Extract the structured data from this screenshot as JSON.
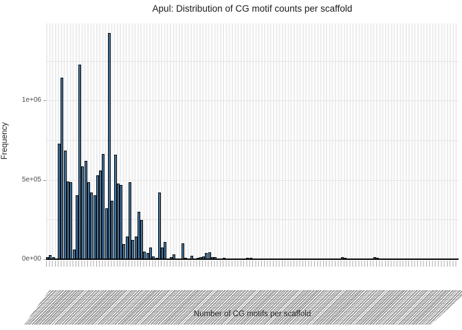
{
  "title": "Apul: Distribution of CG motif counts per scaffold",
  "y_axis": {
    "label": "Frequency",
    "tick_labels": [
      "1e+06",
      "5e+05",
      "0e+00"
    ]
  },
  "x_axis": {
    "label": "Number of CG motifs per scaffold",
    "tick_labels_legible": false,
    "tick_label_style": "rotated ~45deg, densely overlapping into an unreadable gray band"
  },
  "colors": {
    "bar_fill": "#4176A5",
    "bar_outline": "#0d0d0d",
    "gridline": "#e7e7e7",
    "axis_text": "#4d4d4d",
    "title_text": "#1a1a1a"
  },
  "chart_data": {
    "type": "bar",
    "title": "Apul: Distribution of CG motif counts per scaffold",
    "xlabel": "Number of CG motifs per scaffold",
    "ylabel": "Frequency",
    "ylim": [
      0,
      1490000
    ],
    "y_major_gridlines": [
      0,
      500000,
      1000000
    ],
    "y_minor_gridlines": [
      250000,
      750000,
      1250000
    ],
    "y_tick_labels": [
      "0e+00",
      "5e+05",
      "1e+06"
    ],
    "grid": "major and minor horizontal lines plus one light vertical gridline per bar slot, light gray on white",
    "legend": false,
    "n_bars": 140,
    "values": [
      15000,
      28000,
      12000,
      0,
      730000,
      1150000,
      685000,
      490000,
      485000,
      60000,
      405000,
      1230000,
      585000,
      620000,
      485000,
      420000,
      405000,
      530000,
      560000,
      665000,
      320000,
      1430000,
      370000,
      660000,
      478000,
      470000,
      94000,
      145000,
      486000,
      123000,
      145000,
      300000,
      246000,
      50000,
      40000,
      72000,
      18000,
      8000,
      420000,
      74000,
      110000,
      6000,
      14000,
      29000,
      5000,
      4000,
      101000,
      8000,
      4000,
      22000,
      5000,
      10000,
      14000,
      18000,
      40000,
      42000,
      15000,
      14000,
      6000,
      5000,
      8000,
      4000,
      5000,
      4000,
      6000,
      4000,
      4000,
      5000,
      8000,
      8000,
      4000,
      4000,
      5000,
      4000,
      4000,
      5000,
      4000,
      4000,
      4000,
      5000,
      4000,
      4000,
      5000,
      4000,
      4000,
      4000,
      5000,
      4000,
      4000,
      4000,
      5000,
      4000,
      4000,
      4000,
      4000,
      4000,
      4000,
      4000,
      4000,
      4000,
      12000,
      8000,
      4000,
      4000,
      4000,
      4000,
      4000,
      4000,
      4000,
      4000,
      4000,
      12000,
      8000,
      5000,
      4000,
      4000,
      4000,
      4000,
      4000,
      4000,
      4000,
      4000,
      4000,
      4000,
      4000,
      4000,
      4000,
      4000,
      4000,
      4000,
      4000,
      4000,
      4000,
      4000,
      4000,
      4000,
      4000,
      4000,
      4000,
      4000
    ]
  }
}
